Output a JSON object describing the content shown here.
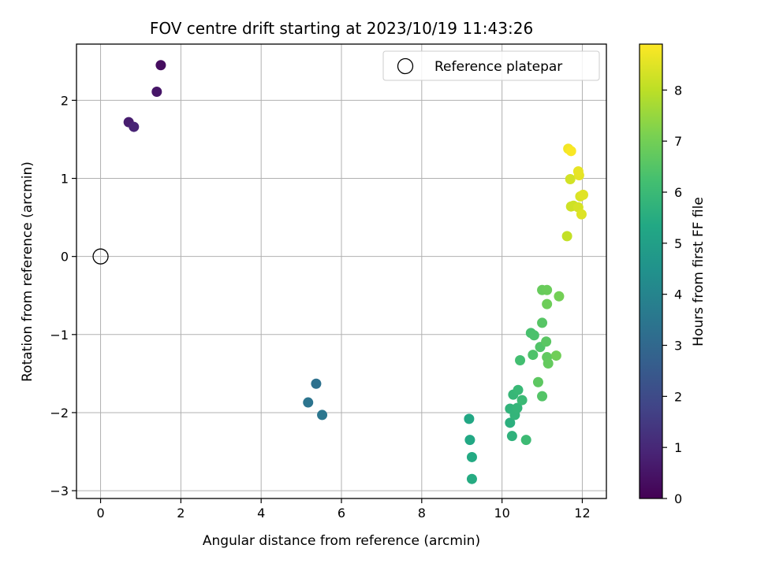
{
  "chart_data": {
    "type": "scatter",
    "title": "FOV centre drift starting at 2023/10/19 11:43:26",
    "xlabel": "Angular distance from reference (arcmin)",
    "ylabel": "Rotation from reference (arcmin)",
    "xlim": [
      -0.6,
      12.6
    ],
    "ylim": [
      -3.1,
      2.72
    ],
    "xticks": [
      0,
      2,
      4,
      6,
      8,
      10,
      12
    ],
    "yticks": [
      -3,
      -2,
      -1,
      0,
      1,
      2
    ],
    "grid": true,
    "legend": {
      "placement": "top-right",
      "entries": [
        "Reference platepar"
      ]
    },
    "reference_point": {
      "name": "Reference platepar",
      "x": 0,
      "y": 0
    },
    "colorbar": {
      "label": "Hours from first FF file",
      "min": 0,
      "max": 8.9,
      "ticks": [
        0,
        1,
        2,
        3,
        4,
        5,
        6,
        7,
        8
      ],
      "colormap": "viridis"
    },
    "points": [
      {
        "x": 1.5,
        "y": 2.45,
        "c": 0.3
      },
      {
        "x": 1.4,
        "y": 2.11,
        "c": 0.5
      },
      {
        "x": 0.7,
        "y": 1.72,
        "c": 0.7
      },
      {
        "x": 0.83,
        "y": 1.66,
        "c": 0.9
      },
      {
        "x": 5.37,
        "y": -1.63,
        "c": 3.3
      },
      {
        "x": 5.17,
        "y": -1.87,
        "c": 3.4
      },
      {
        "x": 5.52,
        "y": -2.03,
        "c": 3.5
      },
      {
        "x": 9.18,
        "y": -2.08,
        "c": 5.3
      },
      {
        "x": 9.2,
        "y": -2.35,
        "c": 5.35
      },
      {
        "x": 9.25,
        "y": -2.57,
        "c": 5.4
      },
      {
        "x": 9.25,
        "y": -2.85,
        "c": 5.45
      },
      {
        "x": 10.2,
        "y": -2.13,
        "c": 5.6
      },
      {
        "x": 10.25,
        "y": -2.3,
        "c": 5.7
      },
      {
        "x": 10.2,
        "y": -1.95,
        "c": 5.75
      },
      {
        "x": 10.32,
        "y": -2.03,
        "c": 5.8
      },
      {
        "x": 10.38,
        "y": -1.94,
        "c": 5.85
      },
      {
        "x": 10.28,
        "y": -1.77,
        "c": 5.9
      },
      {
        "x": 10.4,
        "y": -1.71,
        "c": 5.95
      },
      {
        "x": 10.5,
        "y": -1.84,
        "c": 6.0
      },
      {
        "x": 10.6,
        "y": -2.35,
        "c": 6.05
      },
      {
        "x": 10.45,
        "y": -1.33,
        "c": 6.2
      },
      {
        "x": 10.72,
        "y": -0.98,
        "c": 6.3
      },
      {
        "x": 10.8,
        "y": -1.01,
        "c": 6.35
      },
      {
        "x": 10.77,
        "y": -1.26,
        "c": 6.4
      },
      {
        "x": 10.95,
        "y": -1.16,
        "c": 6.45
      },
      {
        "x": 11.0,
        "y": -1.79,
        "c": 6.5
      },
      {
        "x": 11.0,
        "y": -0.85,
        "c": 6.55
      },
      {
        "x": 11.1,
        "y": -1.09,
        "c": 6.6
      },
      {
        "x": 10.9,
        "y": -1.61,
        "c": 6.65
      },
      {
        "x": 11.12,
        "y": -1.29,
        "c": 6.7
      },
      {
        "x": 11.15,
        "y": -1.37,
        "c": 6.75
      },
      {
        "x": 11.0,
        "y": -0.43,
        "c": 6.8
      },
      {
        "x": 11.12,
        "y": -0.43,
        "c": 6.85
      },
      {
        "x": 11.12,
        "y": -0.61,
        "c": 6.9
      },
      {
        "x": 11.35,
        "y": -1.27,
        "c": 6.95
      },
      {
        "x": 11.42,
        "y": -0.51,
        "c": 7.0
      },
      {
        "x": 11.62,
        "y": 0.26,
        "c": 8.1
      },
      {
        "x": 11.78,
        "y": 0.65,
        "c": 8.2
      },
      {
        "x": 11.72,
        "y": 0.64,
        "c": 8.25
      },
      {
        "x": 11.7,
        "y": 0.99,
        "c": 8.3
      },
      {
        "x": 11.9,
        "y": 0.63,
        "c": 8.35
      },
      {
        "x": 11.95,
        "y": 0.77,
        "c": 8.4
      },
      {
        "x": 11.98,
        "y": 0.54,
        "c": 8.45
      },
      {
        "x": 12.02,
        "y": 0.79,
        "c": 8.5
      },
      {
        "x": 11.92,
        "y": 1.04,
        "c": 8.55
      },
      {
        "x": 11.9,
        "y": 1.09,
        "c": 8.6
      },
      {
        "x": 11.65,
        "y": 1.38,
        "c": 8.75
      },
      {
        "x": 11.72,
        "y": 1.35,
        "c": 8.85
      }
    ]
  }
}
